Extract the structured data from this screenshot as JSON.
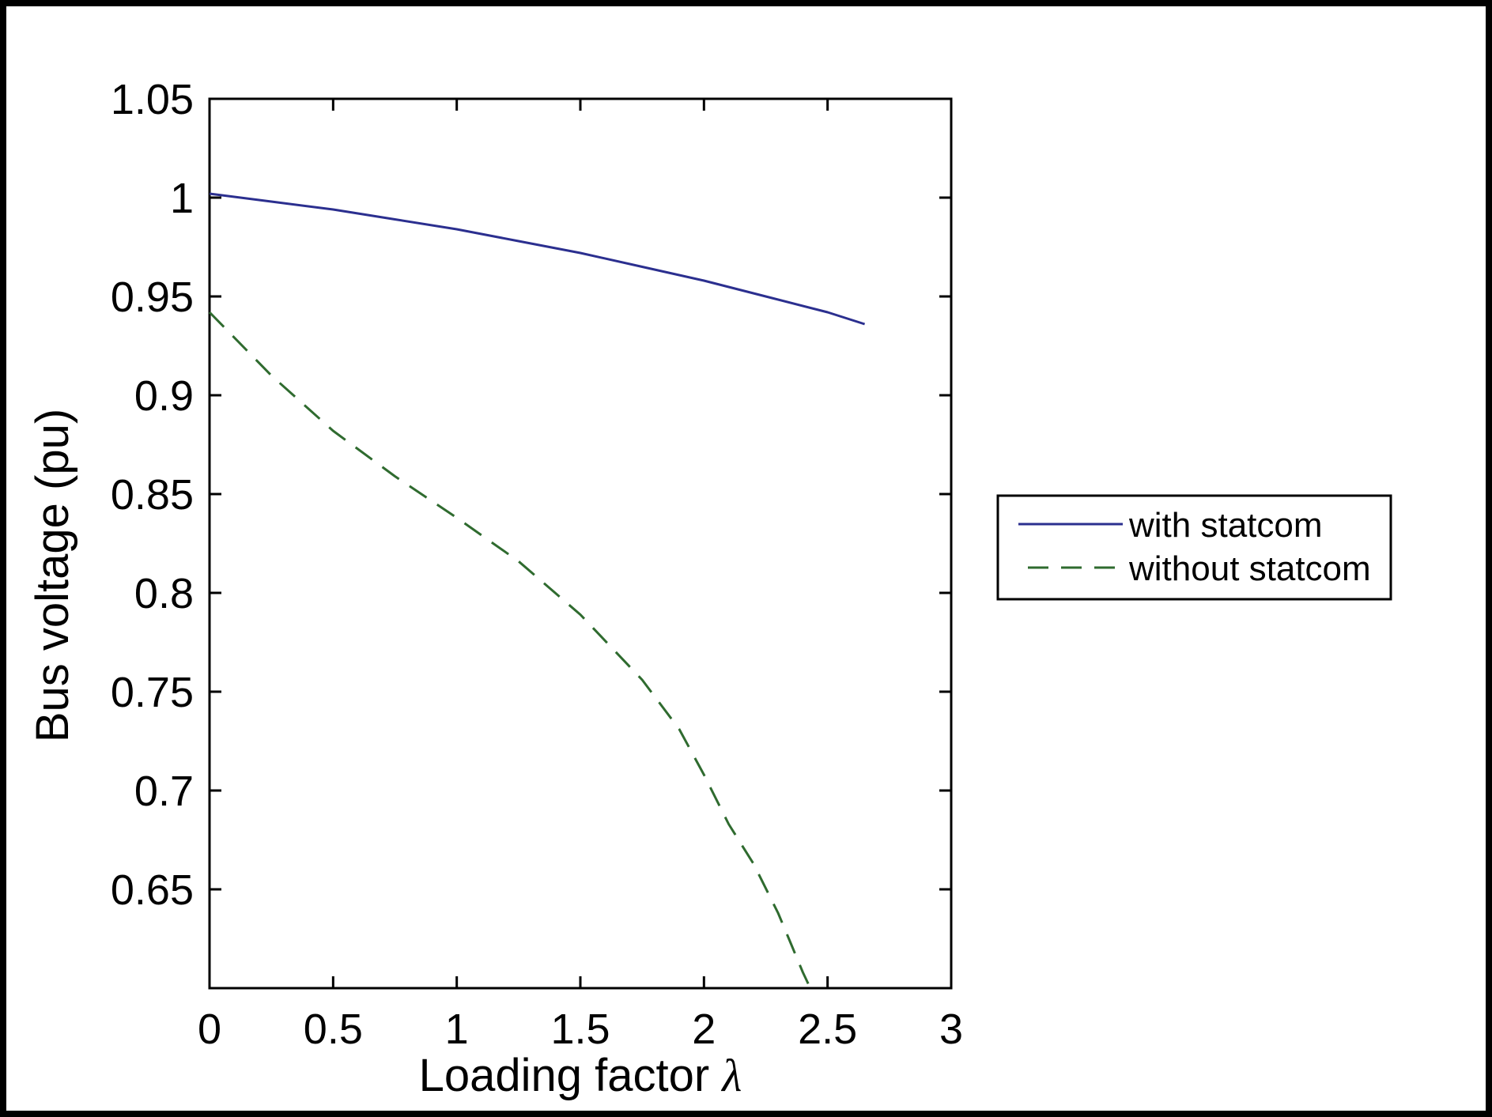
{
  "chart_data": {
    "type": "line",
    "title": "",
    "xlabel": "Loading factor",
    "xlabel_symbol": "λ",
    "ylabel": "Bus voltage (pu)",
    "xlim": [
      0,
      3
    ],
    "ylim": [
      0.6,
      1.05
    ],
    "x_ticks": [
      "0",
      "0.5",
      "1",
      "1.5",
      "2",
      "2.5",
      "3"
    ],
    "y_ticks": [
      "1.05",
      "1",
      "0.95",
      "0.9",
      "0.85",
      "0.8",
      "0.75",
      "0.7",
      "0.65"
    ],
    "grid": false,
    "legend_position": "right",
    "series": [
      {
        "name": "with statcom",
        "color": "#2b2f8f",
        "style": "solid",
        "x": [
          0,
          0.25,
          0.5,
          0.75,
          1.0,
          1.25,
          1.5,
          1.75,
          2.0,
          2.25,
          2.5,
          2.65
        ],
        "y": [
          1.002,
          0.998,
          0.994,
          0.989,
          0.984,
          0.978,
          0.972,
          0.965,
          0.958,
          0.95,
          0.942,
          0.936
        ]
      },
      {
        "name": "without statcom",
        "color": "#2f6b2f",
        "style": "dashed",
        "x": [
          0,
          0.25,
          0.5,
          0.75,
          1.0,
          1.25,
          1.5,
          1.75,
          1.9,
          2.0,
          2.1,
          2.2,
          2.3,
          2.35,
          2.4,
          2.43
        ],
        "y": [
          0.942,
          0.91,
          0.882,
          0.859,
          0.838,
          0.816,
          0.789,
          0.756,
          0.731,
          0.708,
          0.683,
          0.663,
          0.638,
          0.623,
          0.608,
          0.6
        ]
      }
    ]
  }
}
